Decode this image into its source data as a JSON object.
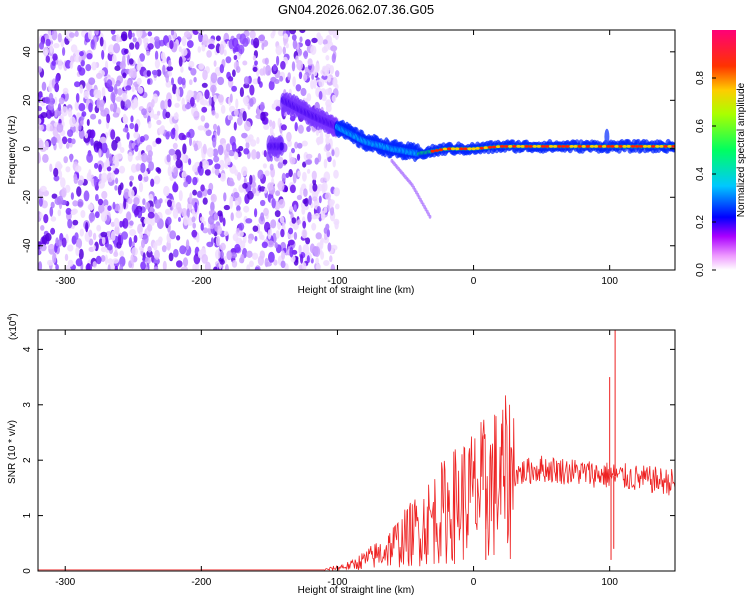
{
  "title": "GN04.2026.062.07.36.G05",
  "chart_data": [
    {
      "type": "heatmap",
      "name": "spectrogram",
      "xlabel": "Height of straight line (km)",
      "ylabel": "Frequency (Hz)",
      "xlim": [
        -320,
        148
      ],
      "ylim": [
        -50,
        49
      ],
      "xticks": [
        -300,
        -200,
        -100,
        0,
        100
      ],
      "xtick_labels": [
        "-300",
        "-200",
        "-100",
        "0",
        "100"
      ],
      "yticks": [
        -40,
        -20,
        0,
        20,
        40
      ],
      "ytick_labels": [
        "-40",
        "-20",
        "0",
        "20",
        "40"
      ],
      "colorbar": {
        "label": "Normalized spectral amplitude",
        "range": [
          0,
          1
        ],
        "ticks": [
          0.0,
          0.2,
          0.4,
          0.6,
          0.8
        ],
        "tick_labels": [
          "0.0",
          "0.2",
          "0.4",
          "0.6",
          "0.8"
        ],
        "colors": [
          "#ffffff",
          "#ff00ff",
          "#0000ff",
          "#00ffff",
          "#00ff00",
          "#ffff00",
          "#ff0000",
          "#ff0080"
        ]
      },
      "ridge": [
        {
          "x": -140,
          "y": 20
        },
        {
          "x": -120,
          "y": 14
        },
        {
          "x": -100,
          "y": 9
        },
        {
          "x": -80,
          "y": 3
        },
        {
          "x": -60,
          "y": 0
        },
        {
          "x": -40,
          "y": -2
        },
        {
          "x": -20,
          "y": 0
        },
        {
          "x": 0,
          "y": 0
        },
        {
          "x": 20,
          "y": 1
        },
        {
          "x": 60,
          "y": 1
        },
        {
          "x": 100,
          "y": 1
        },
        {
          "x": 148,
          "y": 1
        }
      ],
      "branch": [
        {
          "x": -60,
          "y": -5
        },
        {
          "x": -45,
          "y": -15
        },
        {
          "x": -32,
          "y": -28
        }
      ]
    },
    {
      "type": "line",
      "name": "snr",
      "xlabel": "Height of straight line (km)",
      "ylabel": "SNR (10 * v/v)",
      "scale_label": "(x10",
      "scale_exp": "4",
      "close_paren": ")",
      "xlim": [
        -320,
        148
      ],
      "ylim": [
        0,
        4.35
      ],
      "xticks": [
        -300,
        -200,
        -100,
        0,
        100
      ],
      "xtick_labels": [
        "-300",
        "-200",
        "-100",
        "0",
        "100"
      ],
      "yticks": [
        0,
        1,
        2,
        3,
        4
      ],
      "ytick_labels": [
        "0",
        "1",
        "2",
        "3",
        "4"
      ],
      "color": "#ee2222",
      "envelope": [
        {
          "x": -320,
          "y": 0.02
        },
        {
          "x": -110,
          "y": 0.02
        },
        {
          "x": -90,
          "y": 0.1
        },
        {
          "x": -70,
          "y": 0.3
        },
        {
          "x": -50,
          "y": 0.6
        },
        {
          "x": -30,
          "y": 0.95
        },
        {
          "x": -10,
          "y": 1.25
        },
        {
          "x": 10,
          "y": 1.5
        },
        {
          "x": 30,
          "y": 1.75
        },
        {
          "x": 50,
          "y": 1.85
        },
        {
          "x": 70,
          "y": 1.8
        },
        {
          "x": 90,
          "y": 1.75
        },
        {
          "x": 110,
          "y": 1.7
        },
        {
          "x": 148,
          "y": 1.6
        }
      ],
      "spikes": [
        {
          "x": 7,
          "y": 2.45
        },
        {
          "x": 9,
          "y": 0.2
        },
        {
          "x": 100,
          "y": 3.5
        },
        {
          "x": 101,
          "y": 0.2
        },
        {
          "x": 104,
          "y": 4.35
        },
        {
          "x": 103,
          "y": 0.4
        }
      ]
    }
  ]
}
